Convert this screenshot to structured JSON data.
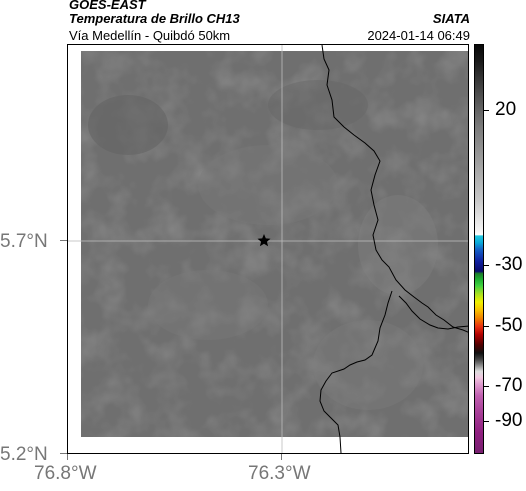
{
  "header": {
    "satellite": "GOES-EAST",
    "product": "Temperatura de Brillo CH13",
    "region": "Vía Medellín - Quibdó 50km",
    "organization": "SIATA",
    "timestamp": "2024-01-14 06:49"
  },
  "map": {
    "lat_ticks": [
      "5.7°N",
      "5.2°N"
    ],
    "lon_ticks": [
      "76.8°W",
      "76.3°W"
    ],
    "marker": "star-marker",
    "gridline_color": "#bcbcbc",
    "fill_color": "#6f6f6f"
  },
  "colorbar": {
    "labels": [
      "20",
      "-30",
      "-50",
      "-70",
      "-90"
    ]
  }
}
